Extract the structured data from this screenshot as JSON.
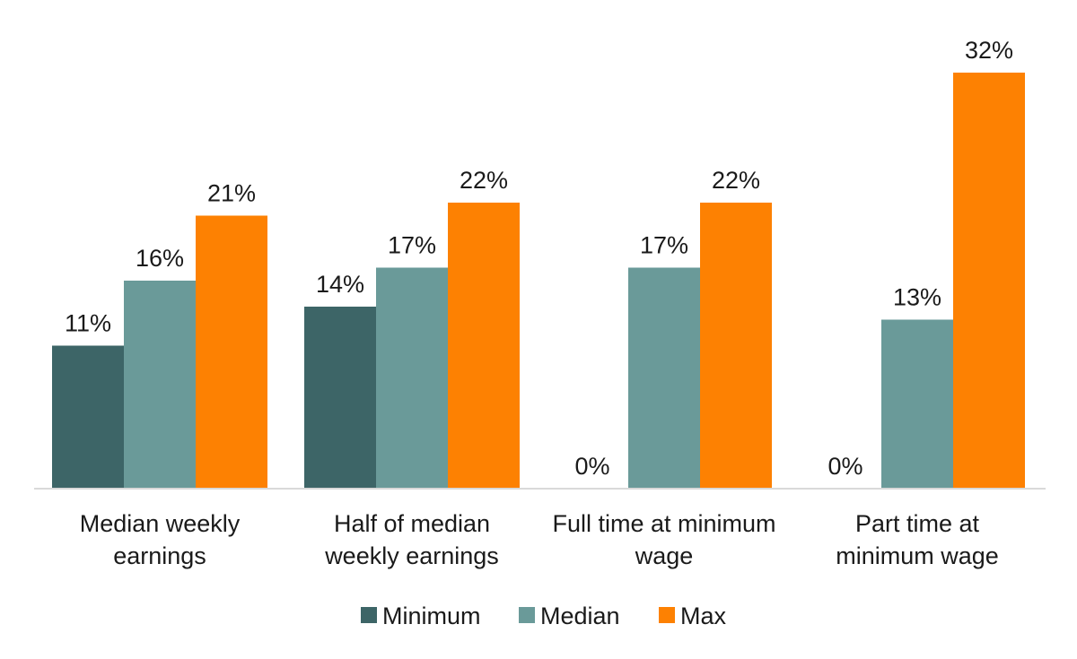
{
  "chart_data": {
    "type": "bar",
    "title": "",
    "xlabel": "",
    "ylabel": "",
    "ylim": [
      0,
      32
    ],
    "grid": false,
    "legend_position": "bottom",
    "categories": [
      [
        "Median weekly",
        "earnings"
      ],
      [
        "Half of median",
        "weekly earnings"
      ],
      [
        "Full time at minimum",
        "wage"
      ],
      [
        "Part time at",
        "minimum wage"
      ]
    ],
    "series": [
      {
        "name": "Minimum",
        "color": "#3d6567",
        "values": [
          11,
          14,
          0,
          0
        ],
        "labels": [
          "11%",
          "14%",
          "0%",
          "0%"
        ]
      },
      {
        "name": "Median",
        "color": "#6a9a99",
        "values": [
          16,
          17,
          17,
          13
        ],
        "labels": [
          "16%",
          "17%",
          "17%",
          "13%"
        ]
      },
      {
        "name": "Max",
        "color": "#fd8102",
        "values": [
          21,
          22,
          22,
          32
        ],
        "labels": [
          "21%",
          "22%",
          "22%",
          "32%"
        ]
      }
    ]
  }
}
